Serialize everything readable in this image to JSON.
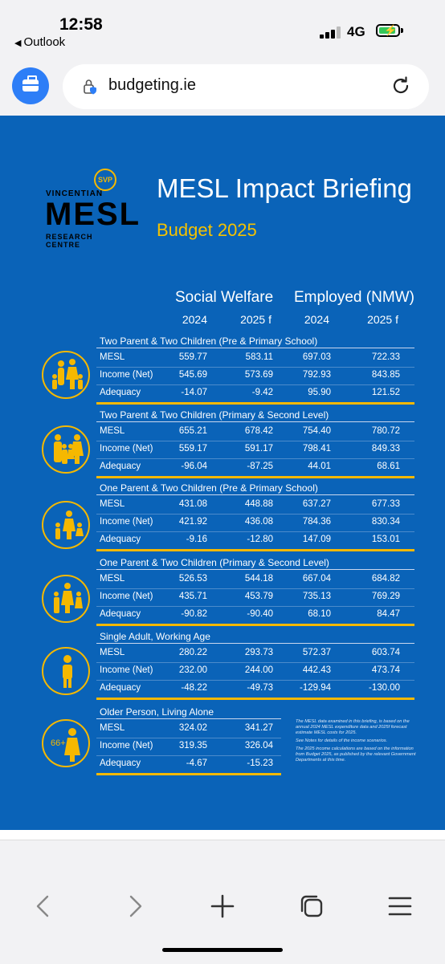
{
  "status": {
    "time": "12:58",
    "back_app": "Outlook",
    "network": "4G"
  },
  "browser": {
    "url": "budgeting.ie",
    "extension_icon": "briefcase-icon"
  },
  "doc": {
    "logo": {
      "top": "VINCENTIAN",
      "main": "MESL",
      "bottom": "RESEARCH CENTRE",
      "badge": "SVP"
    },
    "title": "MESL Impact Briefing",
    "subtitle": "Budget 2025",
    "groups": [
      "Social Welfare",
      "Employed (NMW)"
    ],
    "years": [
      "2024",
      "2025 f",
      "2024",
      "2025 f"
    ],
    "sections": [
      {
        "title": "Two Parent & Two Children (Pre & Primary School)",
        "rows": [
          {
            "label": "MESL",
            "values": [
              "559.77",
              "583.11",
              "697.03",
              "722.33"
            ]
          },
          {
            "label": "Income (Net)",
            "values": [
              "545.69",
              "573.69",
              "792.93",
              "843.85"
            ]
          },
          {
            "label": "Adequacy",
            "values": [
              "-14.07",
              "-9.42",
              "95.90",
              "121.52"
            ]
          }
        ]
      },
      {
        "title": "Two Parent & Two Children (Primary & Second Level)",
        "rows": [
          {
            "label": "MESL",
            "values": [
              "655.21",
              "678.42",
              "754.40",
              "780.72"
            ]
          },
          {
            "label": "Income (Net)",
            "values": [
              "559.17",
              "591.17",
              "798.41",
              "849.33"
            ]
          },
          {
            "label": "Adequacy",
            "values": [
              "-96.04",
              "-87.25",
              "44.01",
              "68.61"
            ]
          }
        ]
      },
      {
        "title": "One Parent & Two Children (Pre & Primary School)",
        "rows": [
          {
            "label": "MESL",
            "values": [
              "431.08",
              "448.88",
              "637.27",
              "677.33"
            ]
          },
          {
            "label": "Income (Net)",
            "values": [
              "421.92",
              "436.08",
              "784.36",
              "830.34"
            ]
          },
          {
            "label": "Adequacy",
            "values": [
              "-9.16",
              "-12.80",
              "147.09",
              "153.01"
            ]
          }
        ]
      },
      {
        "title": "One Parent & Two Children (Primary & Second Level)",
        "rows": [
          {
            "label": "MESL",
            "values": [
              "526.53",
              "544.18",
              "667.04",
              "684.82"
            ]
          },
          {
            "label": "Income (Net)",
            "values": [
              "435.71",
              "453.79",
              "735.13",
              "769.29"
            ]
          },
          {
            "label": "Adequacy",
            "values": [
              "-90.82",
              "-90.40",
              "68.10",
              "84.47"
            ]
          }
        ]
      },
      {
        "title": "Single Adult, Working Age",
        "rows": [
          {
            "label": "MESL",
            "values": [
              "280.22",
              "293.73",
              "572.37",
              "603.74"
            ]
          },
          {
            "label": "Income (Net)",
            "values": [
              "232.00",
              "244.00",
              "442.43",
              "473.74"
            ]
          },
          {
            "label": "Adequacy",
            "values": [
              "-48.22",
              "-49.73",
              "-129.94",
              "-130.00"
            ]
          }
        ]
      },
      {
        "title": "Older Person, Living Alone",
        "rows": [
          {
            "label": "MESL",
            "values": [
              "324.02",
              "341.27"
            ]
          },
          {
            "label": "Income (Net)",
            "values": [
              "319.35",
              "326.04"
            ]
          },
          {
            "label": "Adequacy",
            "values": [
              "-4.67",
              "-15.23"
            ]
          }
        ]
      }
    ],
    "icon_badge": "66+",
    "notes": [
      "The MESL data examined in this briefing, is based on the annual 2024 MESL expenditure data and 2025f forecast estimate MESL costs for 2025.",
      "See Notes for details of the income scenarios.",
      "The 2025 income calculations are based on the information from Budget 2025, as published by the relevant Government Departments at this time."
    ]
  },
  "colors": {
    "doc_bg": "#0a63b8",
    "accent": "#f5b800",
    "browser_blue": "#2d7ef7"
  },
  "toolbar": [
    "back-icon",
    "forward-icon",
    "new-tab-icon",
    "tabs-icon",
    "menu-icon"
  ]
}
